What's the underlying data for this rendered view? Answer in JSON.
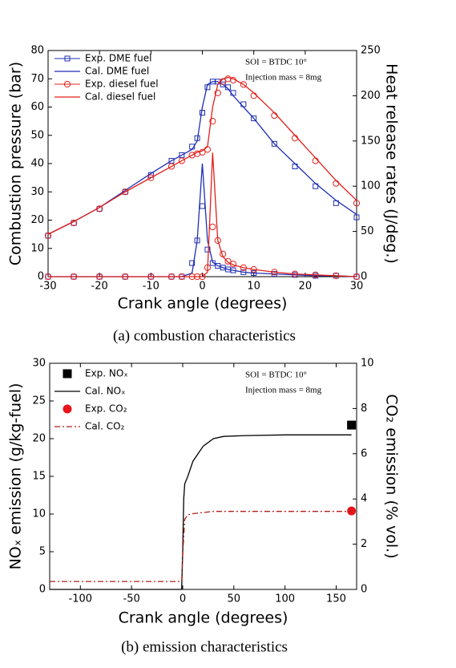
{
  "chart_data": [
    {
      "type": "line",
      "caption": "(a)  combustion characteristics",
      "xlabel": "Crank angle (degrees)",
      "ylabel": "Combustion pressure (bar)",
      "y2label": "Heat release rates (J/deg.)",
      "annotations": [
        "SOI = BTDC 10°",
        "Injection mass = 8mg"
      ],
      "x": [
        -30,
        -25,
        -20,
        -15,
        -10,
        -6,
        -4,
        -2,
        -1,
        0,
        1,
        2,
        3,
        4,
        5,
        6,
        8,
        10,
        14,
        18,
        22,
        26,
        30
      ],
      "xlim": [
        -30,
        30
      ],
      "xticks": [
        -30,
        -20,
        -10,
        0,
        10,
        20,
        30
      ],
      "ylim": [
        0,
        80
      ],
      "yticks": [
        0,
        10,
        20,
        30,
        40,
        50,
        60,
        70,
        80
      ],
      "y2lim": [
        0,
        250
      ],
      "y2ticks": [
        0,
        50,
        100,
        150,
        200,
        250
      ],
      "legend": "upper left",
      "series": [
        {
          "name": "Exp. DME fuel",
          "color": "#1f2fb5",
          "mode": "markers",
          "marker": "square",
          "filled": false,
          "values": [
            14.5,
            19,
            24,
            30,
            36,
            41,
            43,
            46,
            49,
            58,
            67,
            69,
            69,
            68,
            67,
            65,
            61,
            56,
            47,
            39,
            32,
            26,
            21
          ],
          "values_y2": [
            0,
            0,
            0,
            0,
            0,
            0,
            0,
            15,
            40,
            78,
            30,
            15,
            12,
            10,
            8,
            7,
            5,
            4,
            3,
            2,
            1,
            1,
            0
          ]
        },
        {
          "name": "Cal. DME fuel",
          "color": "#1f2fb5",
          "mode": "line",
          "dash": "solid",
          "values": [
            15,
            19.5,
            24.5,
            30.5,
            36.5,
            41,
            43,
            45,
            48,
            60,
            68,
            69,
            69,
            68,
            66.5,
            64,
            60,
            56,
            47,
            40,
            33,
            27,
            22
          ],
          "values_y2": [
            0,
            0,
            0,
            0,
            0,
            0,
            0,
            4,
            40,
            125,
            40,
            16,
            12,
            10,
            8,
            7,
            5,
            4,
            3,
            2,
            1,
            1,
            0
          ]
        },
        {
          "name": "Exp. diesel fuel",
          "color": "#e0201b",
          "mode": "markers",
          "marker": "circle",
          "filled": false,
          "values": [
            14.5,
            19,
            24,
            30,
            35,
            39,
            41,
            43,
            43.5,
            44,
            45,
            55,
            65,
            69,
            70,
            69.5,
            68,
            64,
            57,
            49,
            41,
            33,
            26
          ],
          "values_y2": [
            0,
            0,
            0,
            0,
            0,
            0,
            0,
            0,
            0,
            0,
            10,
            55,
            40,
            25,
            17,
            14,
            10,
            8,
            5,
            3,
            2,
            1,
            0
          ]
        },
        {
          "name": "Cal. diesel fuel",
          "color": "#e0201b",
          "mode": "line",
          "dash": "solid",
          "values": [
            15,
            19.5,
            24.5,
            30,
            35,
            39,
            41,
            43,
            44,
            44.5,
            46,
            60,
            68,
            70,
            70.5,
            70,
            68,
            65,
            58,
            50,
            42,
            34,
            27
          ],
          "values_y2": [
            0,
            0,
            0,
            0,
            0,
            0,
            0,
            0,
            0,
            0,
            5,
            137,
            40,
            22,
            16,
            13,
            10,
            8,
            5,
            3,
            2,
            1,
            0
          ]
        }
      ]
    },
    {
      "type": "line",
      "caption": "(b)  emission characteristics",
      "xlabel": "Crank angle (degrees)",
      "ylabel": "NOₓ emission (g/kg-fuel)",
      "y2label": "CO₂ emission (% vol.)",
      "annotations": [
        "SOI = BTDC 10°",
        "Injection mass = 8mg"
      ],
      "xlim": [
        -130,
        170
      ],
      "xticks": [
        -100,
        -50,
        0,
        50,
        100,
        150
      ],
      "ylim": [
        0,
        30
      ],
      "yticks": [
        0,
        5,
        10,
        15,
        20,
        25,
        30
      ],
      "y2lim": [
        0,
        10
      ],
      "y2ticks": [
        0,
        2,
        4,
        6,
        8,
        10
      ],
      "legend": "upper left",
      "series": [
        {
          "name": "Exp. NOₓ",
          "color": "#000000",
          "mode": "markers",
          "marker": "square",
          "filled": true,
          "x": [
            165
          ],
          "values": [
            21.8
          ]
        },
        {
          "name": "Cal. NOₓ",
          "color": "#000000",
          "mode": "line",
          "dash": "solid",
          "x": [
            -130,
            -1,
            0,
            1,
            2,
            5,
            10,
            20,
            30,
            40,
            60,
            100,
            165
          ],
          "values": [
            0,
            0,
            5,
            12,
            14,
            15,
            17,
            19,
            20,
            20.3,
            20.4,
            20.5,
            20.5
          ]
        },
        {
          "name": "Exp. CO₂",
          "color": "#e8141b",
          "mode": "markers",
          "marker": "circle",
          "filled": true,
          "axis": "y2",
          "x": [
            165
          ],
          "values": [
            3.47
          ]
        },
        {
          "name": "Cal. CO₂",
          "color": "#b0201b",
          "mode": "line",
          "dash": "dash-dot",
          "axis": "y2",
          "x": [
            -130,
            -1,
            0,
            2,
            5,
            10,
            30,
            165
          ],
          "values": [
            0.35,
            0.35,
            1.5,
            3.1,
            3.3,
            3.35,
            3.45,
            3.45
          ]
        }
      ]
    }
  ]
}
